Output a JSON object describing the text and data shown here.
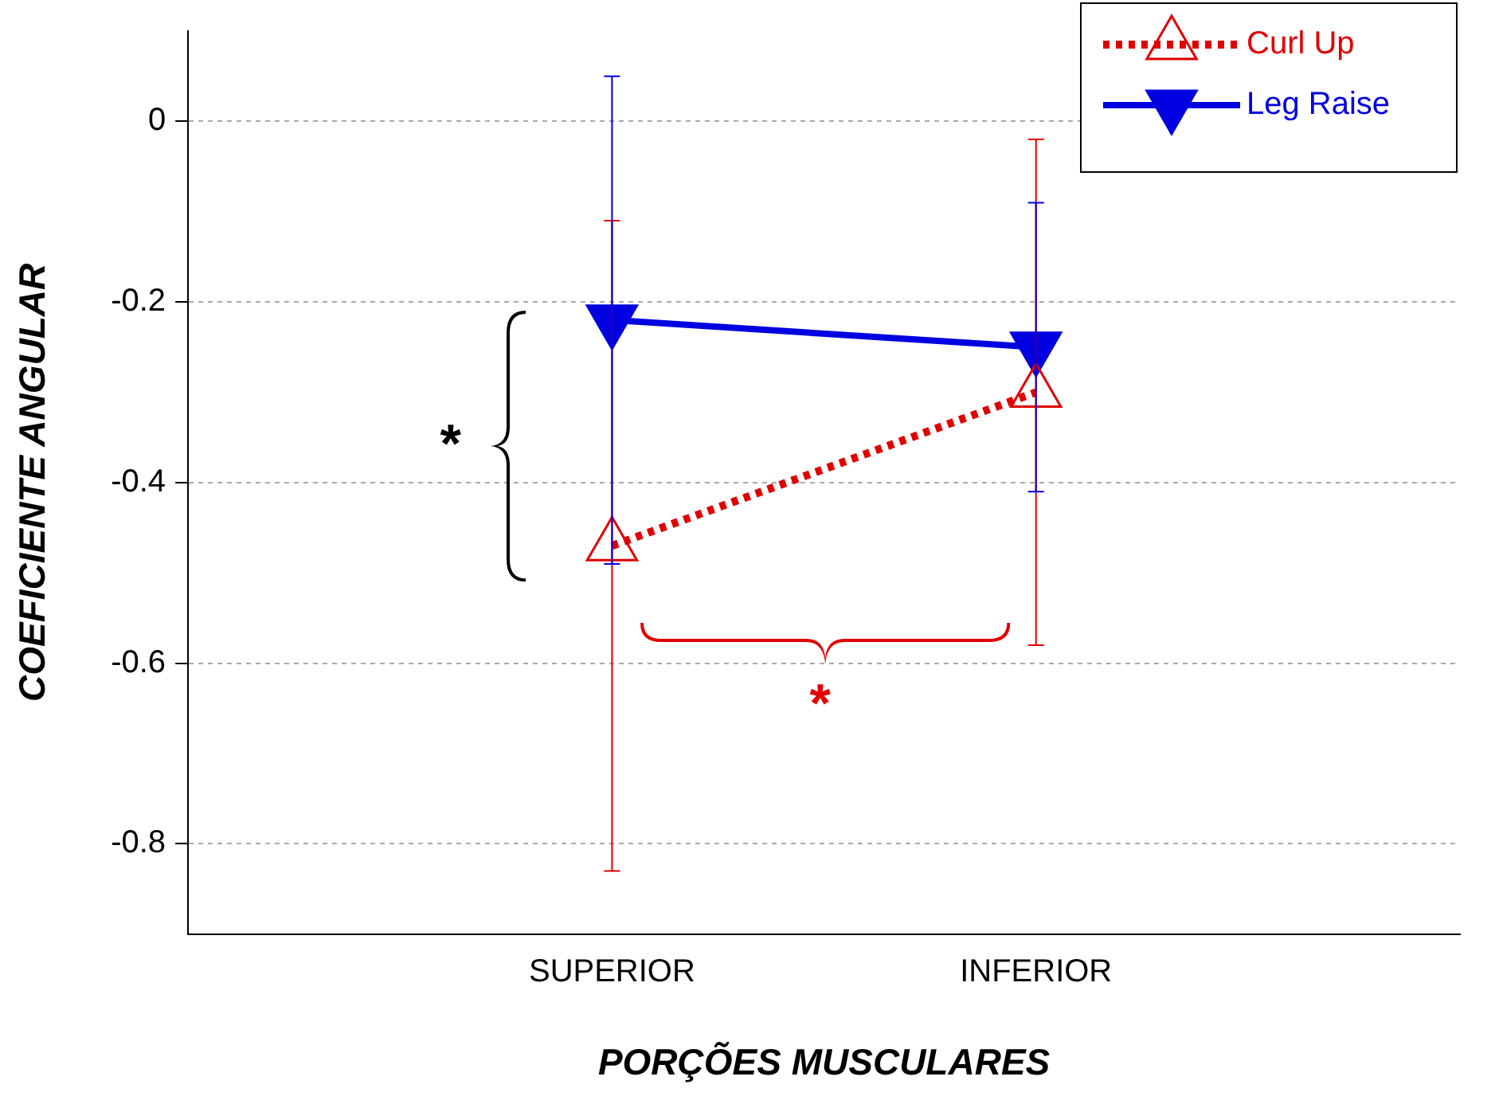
{
  "chart_data": {
    "type": "line",
    "xlabel": "PORÇÕES MUSCULARES",
    "ylabel": "COEFICIENTE ANGULAR",
    "categories": [
      "SUPERIOR",
      "INFERIOR"
    ],
    "series": [
      {
        "name": "Curl Up",
        "color": "#e00000",
        "values": [
          -0.47,
          -0.3
        ],
        "errors": [
          0.36,
          0.28
        ],
        "line_style": "dotted",
        "marker": "triangle"
      },
      {
        "name": "Leg Raise",
        "color": "#0000e0",
        "values": [
          -0.22,
          -0.25
        ],
        "errors": [
          0.27,
          0.16
        ],
        "line_style": "solid",
        "marker": "triangle"
      }
    ],
    "ylim": [
      -0.9,
      0.1
    ],
    "yticks": [
      0,
      -0.2,
      -0.4,
      -0.6,
      -0.8
    ],
    "grid": "y",
    "legend": "top right",
    "annotations": [
      "*",
      "*"
    ]
  }
}
